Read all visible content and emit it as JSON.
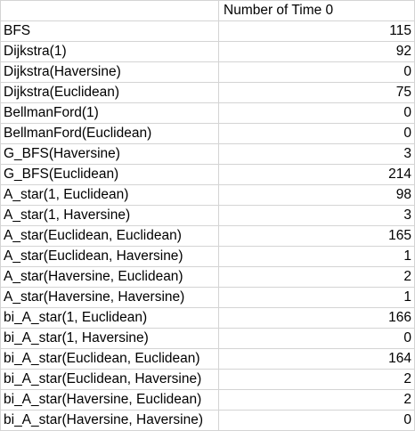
{
  "sheet": {
    "header": [
      "",
      "Number of Time 0"
    ],
    "rows": [
      {
        "name": "BFS",
        "value": "115"
      },
      {
        "name": "Dijkstra(1)",
        "value": "92"
      },
      {
        "name": "Dijkstra(Haversine)",
        "value": "0"
      },
      {
        "name": "Dijkstra(Euclidean)",
        "value": "75"
      },
      {
        "name": "BellmanFord(1)",
        "value": "0"
      },
      {
        "name": "BellmanFord(Euclidean)",
        "value": "0"
      },
      {
        "name": "G_BFS(Haversine)",
        "value": "3"
      },
      {
        "name": "G_BFS(Euclidean)",
        "value": "214"
      },
      {
        "name": "A_star(1, Euclidean)",
        "value": "98"
      },
      {
        "name": "A_star(1, Haversine)",
        "value": "3"
      },
      {
        "name": "A_star(Euclidean, Euclidean)",
        "value": "165"
      },
      {
        "name": "A_star(Euclidean, Haversine)",
        "value": "1"
      },
      {
        "name": "A_star(Haversine, Euclidean)",
        "value": "2"
      },
      {
        "name": "A_star(Haversine, Haversine)",
        "value": "1"
      },
      {
        "name": "bi_A_star(1, Euclidean)",
        "value": "166"
      },
      {
        "name": "bi_A_star(1, Haversine)",
        "value": "0"
      },
      {
        "name": "bi_A_star(Euclidean, Euclidean)",
        "value": "164"
      },
      {
        "name": "bi_A_star(Euclidean, Haversine)",
        "value": "2"
      },
      {
        "name": "bi_A_star(Haversine, Euclidean)",
        "value": "2"
      },
      {
        "name": "bi_A_star(Haversine, Haversine)",
        "value": "0"
      }
    ]
  }
}
